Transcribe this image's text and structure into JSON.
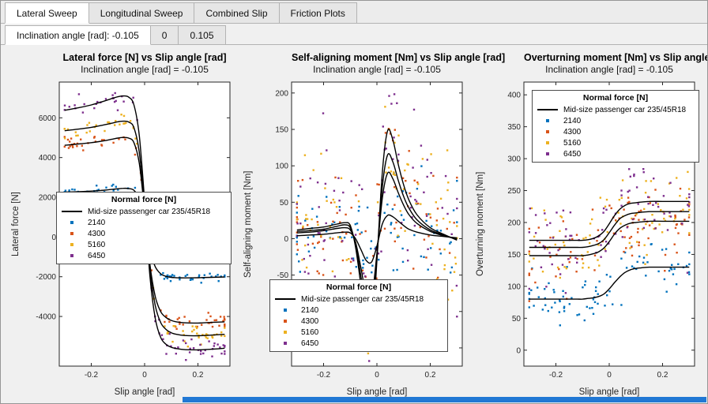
{
  "app": {
    "tabs_primary": [
      {
        "label": "Lateral Sweep",
        "active": true
      },
      {
        "label": "Longitudinal Sweep",
        "active": false
      },
      {
        "label": "Combined Slip",
        "active": false
      },
      {
        "label": "Friction Plots",
        "active": false
      }
    ],
    "tabs_secondary": [
      {
        "label": "Inclination angle [rad]: -0.105",
        "active": true
      },
      {
        "label": "0",
        "active": false
      },
      {
        "label": "0.105",
        "active": false
      }
    ],
    "accent_bar_color": "#2178d4"
  },
  "palette": {
    "figure_bg": "#f0f0f0",
    "axes_bg": "#ffffff",
    "axes_color": "#262626",
    "fit_line_color": "#000000",
    "series_colors": [
      "#0072BD",
      "#D95319",
      "#EDB120",
      "#7E2F8E"
    ]
  },
  "chart_data": [
    {
      "type": "scatter",
      "title": "Lateral force [N] vs Slip angle [rad]",
      "subtitle": "Inclination angle [rad] = -0.105",
      "xlabel": "Slip angle [rad]",
      "ylabel": "Lateral force [N]",
      "xlim": [
        -0.32,
        0.32
      ],
      "ylim": [
        -6500,
        7800
      ],
      "xticks": [
        -0.2,
        0,
        0.2
      ],
      "yticks": [
        -4000,
        -2000,
        0,
        2000,
        4000,
        6000
      ],
      "grid": false,
      "legend": {
        "title": "Normal force [N]",
        "line_entry": "Mid-size passenger car 235/45R18",
        "entries": [
          "2140",
          "4300",
          "5160",
          "6450"
        ],
        "position": "middle-left"
      },
      "x": [
        -0.3,
        -0.25,
        -0.2,
        -0.15,
        -0.12,
        -0.1,
        -0.08,
        -0.06,
        -0.04,
        -0.02,
        0,
        0.02,
        0.04,
        0.06,
        0.08,
        0.1,
        0.12,
        0.15,
        0.2,
        0.25,
        0.3
      ],
      "series": [
        {
          "name": "2140",
          "color": "#0072BD",
          "values": [
            2260,
            2280,
            2310,
            2360,
            2400,
            2430,
            2450,
            2440,
            2350,
            1900,
            700,
            -700,
            -1500,
            -1850,
            -1980,
            -2030,
            -2050,
            -2060,
            -2050,
            -2030,
            -2010
          ],
          "scatter_sigma": 110,
          "scatter_n": 70
        },
        {
          "name": "4300",
          "color": "#D95319",
          "values": [
            4620,
            4680,
            4750,
            4850,
            4930,
            4980,
            5010,
            4980,
            4750,
            3700,
            1300,
            -1400,
            -3000,
            -3750,
            -4050,
            -4200,
            -4270,
            -4320,
            -4330,
            -4300,
            -4270
          ],
          "scatter_sigma": 200,
          "scatter_n": 70
        },
        {
          "name": "5160",
          "color": "#EDB120",
          "values": [
            5350,
            5430,
            5520,
            5650,
            5740,
            5800,
            5830,
            5790,
            5500,
            4250,
            1500,
            -1650,
            -3450,
            -4300,
            -4650,
            -4820,
            -4900,
            -4960,
            -4970,
            -4940,
            -4900
          ],
          "scatter_sigma": 230,
          "scatter_n": 70
        },
        {
          "name": "6450",
          "color": "#7E2F8E",
          "values": [
            6380,
            6500,
            6650,
            6850,
            6980,
            7060,
            7100,
            7040,
            6650,
            5100,
            1800,
            -2000,
            -4100,
            -5050,
            -5400,
            -5550,
            -5620,
            -5670,
            -5680,
            -5650,
            -5600
          ],
          "scatter_sigma": 260,
          "scatter_n": 70
        }
      ]
    },
    {
      "type": "scatter",
      "title": "Self-aligning moment [Nm] vs Slip angle [rad]",
      "subtitle": "Inclination angle [rad] = -0.105",
      "xlabel": "Slip angle [rad]",
      "ylabel": "Self-aligning moment [Nm]",
      "xlim": [
        -0.32,
        0.32
      ],
      "ylim": [
        -175,
        215
      ],
      "xticks": [
        -0.2,
        0,
        0.2
      ],
      "yticks": [
        -150,
        -100,
        -50,
        0,
        50,
        100,
        150,
        200
      ],
      "grid": false,
      "legend": {
        "title": "Normal force [N]",
        "line_entry": "Mid-size passenger car 235/45R18",
        "entries": [
          "2140",
          "4300",
          "5160",
          "6450"
        ],
        "position": "bottom-center"
      },
      "x": [
        -0.3,
        -0.25,
        -0.2,
        -0.15,
        -0.12,
        -0.1,
        -0.08,
        -0.06,
        -0.04,
        -0.02,
        0,
        0.02,
        0.04,
        0.06,
        0.08,
        0.1,
        0.12,
        0.15,
        0.2,
        0.25,
        0.3
      ],
      "series": [
        {
          "name": "2140",
          "color": "#0072BD",
          "values": [
            4,
            5,
            6,
            8,
            9,
            8,
            0,
            -15,
            -30,
            -32,
            -10,
            20,
            32,
            30,
            24,
            18,
            13,
            9,
            5,
            3,
            1
          ],
          "scatter_sigma": 30,
          "scatter_n": 90
        },
        {
          "name": "4300",
          "color": "#D95319",
          "values": [
            8,
            9,
            11,
            14,
            15,
            12,
            -5,
            -40,
            -78,
            -82,
            -20,
            55,
            90,
            82,
            63,
            46,
            33,
            21,
            10,
            4,
            0
          ],
          "scatter_sigma": 42,
          "scatter_n": 90
        },
        {
          "name": "5160",
          "color": "#EDB120",
          "values": [
            10,
            11,
            13,
            17,
            19,
            15,
            -8,
            -52,
            -100,
            -105,
            -25,
            70,
            115,
            105,
            80,
            58,
            42,
            26,
            12,
            5,
            -1
          ],
          "scatter_sigma": 48,
          "scatter_n": 90
        },
        {
          "name": "6450",
          "color": "#7E2F8E",
          "values": [
            12,
            14,
            16,
            20,
            22,
            18,
            -12,
            -65,
            -125,
            -132,
            -30,
            90,
            148,
            135,
            102,
            74,
            53,
            33,
            15,
            6,
            -2
          ],
          "scatter_sigma": 55,
          "scatter_n": 90
        }
      ]
    },
    {
      "type": "scatter",
      "title": "Overturning moment [Nm] vs Slip angle [rad]",
      "subtitle": "Inclination angle [rad] = -0.105",
      "xlabel": "Slip angle [rad]",
      "ylabel": "Overturning moment [Nm]",
      "xlim": [
        -0.32,
        0.32
      ],
      "ylim": [
        -25,
        420
      ],
      "xticks": [
        -0.2,
        0,
        0.2
      ],
      "yticks": [
        0,
        50,
        100,
        150,
        200,
        250,
        300,
        350,
        400
      ],
      "grid": false,
      "legend": {
        "title": "Normal force [N]",
        "line_entry": "Mid-size passenger car 235/45R18",
        "entries": [
          "2140",
          "4300",
          "5160",
          "6450"
        ],
        "position": "top-center"
      },
      "x": [
        -0.3,
        -0.25,
        -0.2,
        -0.15,
        -0.12,
        -0.1,
        -0.08,
        -0.06,
        -0.04,
        -0.02,
        0,
        0.02,
        0.04,
        0.06,
        0.08,
        0.1,
        0.12,
        0.15,
        0.2,
        0.25,
        0.3
      ],
      "series": [
        {
          "name": "2140",
          "color": "#0072BD",
          "values": [
            80,
            80,
            80,
            80,
            80,
            80,
            81,
            82,
            84,
            88,
            96,
            106,
            115,
            122,
            126,
            128,
            129,
            130,
            130,
            130,
            130
          ],
          "scatter_sigma": 22,
          "scatter_n": 90
        },
        {
          "name": "4300",
          "color": "#D95319",
          "values": [
            148,
            148,
            148,
            148,
            148,
            148,
            149,
            151,
            154,
            160,
            170,
            182,
            191,
            196,
            199,
            200,
            201,
            202,
            202,
            202,
            202
          ],
          "scatter_sigma": 30,
          "scatter_n": 90
        },
        {
          "name": "5160",
          "color": "#EDB120",
          "values": [
            161,
            161,
            161,
            161,
            161,
            161,
            162,
            164,
            167,
            173,
            184,
            196,
            206,
            211,
            214,
            215,
            216,
            217,
            217,
            217,
            217
          ],
          "scatter_sigma": 34,
          "scatter_n": 90
        },
        {
          "name": "6450",
          "color": "#7E2F8E",
          "values": [
            172,
            172,
            172,
            172,
            172,
            172,
            173,
            175,
            179,
            186,
            198,
            211,
            221,
            227,
            230,
            231,
            232,
            233,
            233,
            233,
            233
          ],
          "scatter_sigma": 38,
          "scatter_n": 90
        }
      ]
    }
  ]
}
